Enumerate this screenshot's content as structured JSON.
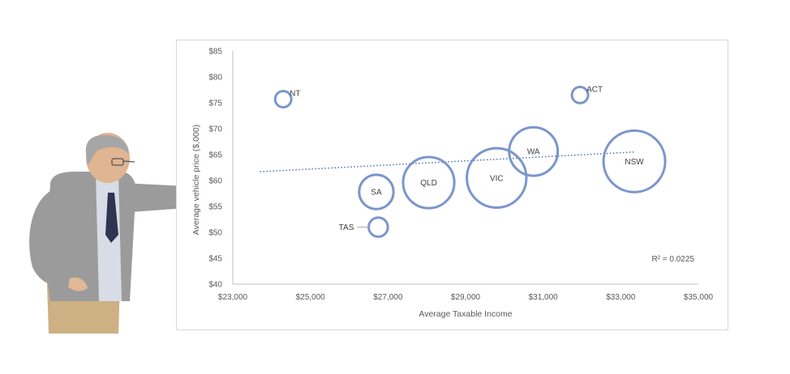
{
  "chart_data": {
    "type": "bubble",
    "xlabel": "Average Taxable Income",
    "ylabel": "Average vehicle price ($,000)",
    "xlim": [
      23000,
      35000
    ],
    "ylim": [
      40,
      85
    ],
    "x_ticks": [
      "$23,000",
      "$25,000",
      "$27,000",
      "$29,000",
      "$31,000",
      "$33,000",
      "$35,000"
    ],
    "y_ticks": [
      "$40",
      "$45",
      "$50",
      "$55",
      "$60",
      "$65",
      "$70",
      "$75",
      "$80",
      "$85"
    ],
    "points": [
      {
        "label": "NT",
        "x": 24300,
        "y": 75.7,
        "size": 1
      },
      {
        "label": "ACT",
        "x": 31950,
        "y": 76.5,
        "size": 1
      },
      {
        "label": "SA",
        "x": 26700,
        "y": 57.8,
        "size": 4.5
      },
      {
        "label": "TAS",
        "x": 26750,
        "y": 51.0,
        "size": 1.4
      },
      {
        "label": "QLD",
        "x": 28050,
        "y": 59.6,
        "size": 10
      },
      {
        "label": "VIC",
        "x": 29800,
        "y": 60.5,
        "size": 13.5
      },
      {
        "label": "WA",
        "x": 30750,
        "y": 65.6,
        "size": 9
      },
      {
        "label": "NSW",
        "x": 33350,
        "y": 63.7,
        "size": 14.5
      }
    ],
    "trendline": {
      "type": "linear",
      "x": [
        23700,
        33350
      ],
      "y": [
        61.7,
        65.5
      ],
      "r_squared_label": "R² = 0.0225"
    },
    "grid": false,
    "colors": {
      "bubble": "#7b96cc",
      "trendline": "#4f72b8",
      "axis": "#bfbfbf"
    }
  }
}
